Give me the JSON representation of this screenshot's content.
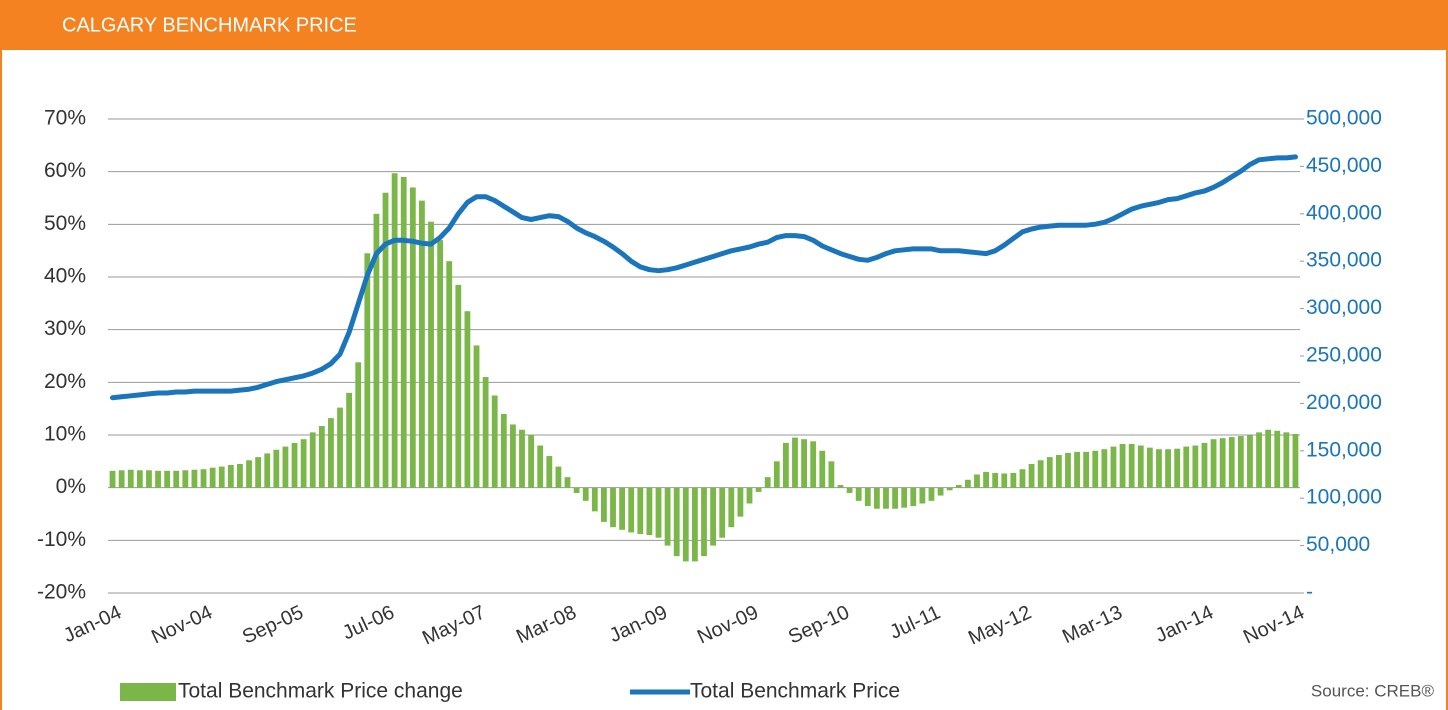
{
  "chart_data": {
    "type": "combo",
    "title": "CALGARY BENCHMARK PRICE",
    "source": "Source: CREB®",
    "categories": [
      "Jan-04",
      null,
      null,
      null,
      null,
      null,
      null,
      null,
      null,
      null,
      "Nov-04",
      null,
      null,
      null,
      null,
      null,
      null,
      null,
      null,
      null,
      "Sep-05",
      null,
      null,
      null,
      null,
      null,
      null,
      null,
      null,
      null,
      "Jul-06",
      null,
      null,
      null,
      null,
      null,
      null,
      null,
      null,
      null,
      "May-07",
      null,
      null,
      null,
      null,
      null,
      null,
      null,
      null,
      null,
      "Mar-08",
      null,
      null,
      null,
      null,
      null,
      null,
      null,
      null,
      null,
      "Jan-09",
      null,
      null,
      null,
      null,
      null,
      null,
      null,
      null,
      null,
      "Nov-09",
      null,
      null,
      null,
      null,
      null,
      null,
      null,
      null,
      null,
      "Sep-10",
      null,
      null,
      null,
      null,
      null,
      null,
      null,
      null,
      null,
      "Jul-11",
      null,
      null,
      null,
      null,
      null,
      null,
      null,
      null,
      null,
      "May-12",
      null,
      null,
      null,
      null,
      null,
      null,
      null,
      null,
      null,
      "Mar-13",
      null,
      null,
      null,
      null,
      null,
      null,
      null,
      null,
      null,
      "Jan-14",
      null,
      null,
      null,
      null,
      null,
      null,
      null,
      null,
      null,
      "Nov-14"
    ],
    "series": [
      {
        "name": "Total Benchmark Price change",
        "type": "bar",
        "axis": "y",
        "color": "#7ab648",
        "values": [
          3.2,
          3.3,
          3.4,
          3.3,
          3.3,
          3.2,
          3.2,
          3.2,
          3.3,
          3.4,
          3.5,
          3.8,
          4,
          4.3,
          4.5,
          5.2,
          5.8,
          6.5,
          7.2,
          7.8,
          8.5,
          9.2,
          10.5,
          11.7,
          13.2,
          15.2,
          18,
          23.8,
          44.5,
          52,
          56,
          59.7,
          59,
          57,
          54.5,
          50.5,
          47,
          43,
          38.5,
          33.5,
          27,
          21,
          17.5,
          14,
          12,
          11,
          10,
          8,
          6,
          4,
          2,
          -1,
          -2.5,
          -4.5,
          -6.5,
          -7.5,
          -8,
          -8.5,
          -8.8,
          -9,
          -9.5,
          -11,
          -13,
          -14,
          -14,
          -13,
          -11,
          -9.5,
          -7.5,
          -5.5,
          -3,
          -0.8,
          2,
          5,
          8.5,
          9.5,
          9.2,
          8.8,
          7,
          5,
          0.5,
          -1,
          -2.5,
          -3.5,
          -4,
          -4,
          -4,
          -3.8,
          -3.5,
          -3,
          -2.5,
          -1.5,
          -0.5,
          0.5,
          1.5,
          2.5,
          3,
          2.8,
          2.7,
          2.8,
          3.5,
          4.5,
          5.2,
          5.8,
          6.2,
          6.6,
          6.8,
          6.8,
          7,
          7.3,
          7.8,
          8.3,
          8.3,
          8,
          7.6,
          7.3,
          7.3,
          7.4,
          7.8,
          8,
          8.5,
          9.2,
          9.4,
          9.6,
          9.8,
          10,
          10.5,
          11,
          10.8,
          10.5,
          10.2
        ]
      },
      {
        "name": "Total Benchmark Price",
        "type": "line",
        "axis": "y2",
        "color": "#1a75bc",
        "values": [
          206000,
          207000,
          208000,
          209000,
          210000,
          211000,
          211000,
          212000,
          212000,
          213000,
          213000,
          213000,
          213000,
          213000,
          214000,
          215000,
          217000,
          220000,
          223000,
          225000,
          227000,
          229000,
          232000,
          236000,
          242000,
          252000,
          275000,
          305000,
          335000,
          358000,
          368000,
          372000,
          372000,
          371000,
          369000,
          368000,
          375000,
          385000,
          400000,
          412000,
          418000,
          418000,
          414000,
          408000,
          402000,
          396000,
          394000,
          396000,
          398000,
          397000,
          392000,
          385000,
          380000,
          376000,
          371000,
          365000,
          358000,
          350000,
          344000,
          341000,
          340000,
          341000,
          343000,
          346000,
          349000,
          352000,
          355000,
          358000,
          361000,
          363000,
          365000,
          368000,
          370000,
          375000,
          377000,
          377000,
          376000,
          372000,
          366000,
          362000,
          358000,
          355000,
          352000,
          351000,
          354000,
          358000,
          361000,
          362000,
          363000,
          363000,
          363000,
          361000,
          361000,
          361000,
          360000,
          359000,
          358000,
          361000,
          367000,
          374000,
          381000,
          384000,
          386000,
          387000,
          388000,
          388000,
          388000,
          388000,
          389000,
          391000,
          395000,
          400000,
          405000,
          408000,
          410000,
          412000,
          415000,
          416000,
          419000,
          422000,
          424000,
          428000,
          433000,
          439000,
          445000,
          452000,
          457000,
          458000,
          459000,
          459000,
          460000
        ]
      }
    ],
    "ylim": [
      -20,
      70
    ],
    "yticks": [
      {
        "value": -20,
        "label": "-20%"
      },
      {
        "value": -10,
        "label": "-10%"
      },
      {
        "value": 0,
        "label": "0%"
      },
      {
        "value": 10,
        "label": "10%"
      },
      {
        "value": 20,
        "label": "20%"
      },
      {
        "value": 30,
        "label": "30%"
      },
      {
        "value": 40,
        "label": "40%"
      },
      {
        "value": 50,
        "label": "50%"
      },
      {
        "value": 60,
        "label": "60%"
      },
      {
        "value": 70,
        "label": "70%"
      }
    ],
    "y2lim": [
      0,
      500000
    ],
    "y2ticks": [
      {
        "value": 0,
        "label": "-"
      },
      {
        "value": 50000,
        "label": "50,000"
      },
      {
        "value": 100000,
        "label": "100,000"
      },
      {
        "value": 150000,
        "label": "150,000"
      },
      {
        "value": 200000,
        "label": "200,000"
      },
      {
        "value": 250000,
        "label": "250,000"
      },
      {
        "value": 300000,
        "label": "300,000"
      },
      {
        "value": 350000,
        "label": "350,000"
      },
      {
        "value": 400000,
        "label": "400,000"
      },
      {
        "value": 450000,
        "label": "450,000"
      },
      {
        "value": 500000,
        "label": "500,000"
      }
    ],
    "grid": true
  }
}
